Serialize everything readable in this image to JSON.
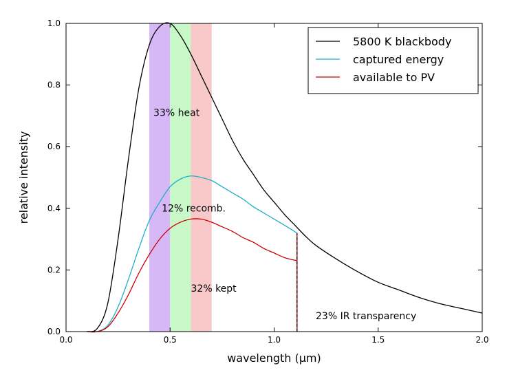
{
  "chart_data": {
    "type": "line",
    "title": "",
    "xlabel": "wavelength (μm)",
    "ylabel": "relative intensity",
    "xlim": [
      0.0,
      2.0
    ],
    "ylim": [
      0.0,
      1.0
    ],
    "xticks": [
      0.0,
      0.5,
      1.0,
      1.5,
      2.0
    ],
    "xtick_labels": [
      "0.0",
      "0.5",
      "1.0",
      "1.5",
      "2.0"
    ],
    "yticks": [
      0.0,
      0.2,
      0.4,
      0.6,
      0.8,
      1.0
    ],
    "ytick_labels": [
      "0.0",
      "0.2",
      "0.4",
      "0.6",
      "0.8",
      "1.0"
    ],
    "grid": false,
    "legend_position": "top-right",
    "bands": [
      {
        "x0": 0.4,
        "x1": 0.5,
        "color": "#d6b8f7"
      },
      {
        "x0": 0.5,
        "x1": 0.6,
        "color": "#c8f7c8"
      },
      {
        "x0": 0.6,
        "x1": 0.7,
        "color": "#f9c8c8"
      }
    ],
    "bandgap_cutoff": 1.11,
    "series": [
      {
        "name": "5800 K blackbody",
        "color": "#000000",
        "x": [
          0.1,
          0.15,
          0.2,
          0.25,
          0.3,
          0.35,
          0.4,
          0.45,
          0.5,
          0.55,
          0.6,
          0.65,
          0.7,
          0.75,
          0.8,
          0.85,
          0.9,
          0.95,
          1.0,
          1.05,
          1.1,
          1.15,
          1.2,
          1.3,
          1.4,
          1.5,
          1.6,
          1.7,
          1.8,
          1.9,
          2.0
        ],
        "y": [
          0.0,
          0.01,
          0.09,
          0.3,
          0.56,
          0.79,
          0.93,
          0.99,
          1.0,
          0.96,
          0.9,
          0.83,
          0.76,
          0.69,
          0.62,
          0.56,
          0.51,
          0.46,
          0.42,
          0.38,
          0.345,
          0.31,
          0.28,
          0.235,
          0.195,
          0.16,
          0.135,
          0.11,
          0.09,
          0.075,
          0.06
        ]
      },
      {
        "name": "captured energy",
        "color": "#1ab0c8",
        "x": [
          0.1,
          0.15,
          0.2,
          0.25,
          0.3,
          0.35,
          0.4,
          0.45,
          0.5,
          0.55,
          0.6,
          0.65,
          0.7,
          0.75,
          0.8,
          0.85,
          0.9,
          0.95,
          1.0,
          1.05,
          1.11
        ],
        "y": [
          0.0,
          0.0,
          0.02,
          0.08,
          0.17,
          0.27,
          0.36,
          0.42,
          0.47,
          0.495,
          0.505,
          0.5,
          0.49,
          0.47,
          0.45,
          0.43,
          0.405,
          0.385,
          0.365,
          0.345,
          0.32
        ]
      },
      {
        "name": "available to PV",
        "color": "#cc0000",
        "x": [
          0.1,
          0.15,
          0.2,
          0.25,
          0.3,
          0.35,
          0.4,
          0.45,
          0.5,
          0.55,
          0.6,
          0.65,
          0.7,
          0.75,
          0.8,
          0.85,
          0.9,
          0.95,
          1.0,
          1.05,
          1.11
        ],
        "y": [
          0.0,
          0.0,
          0.015,
          0.06,
          0.12,
          0.19,
          0.25,
          0.3,
          0.335,
          0.355,
          0.365,
          0.365,
          0.355,
          0.34,
          0.325,
          0.305,
          0.29,
          0.27,
          0.255,
          0.24,
          0.23
        ]
      }
    ],
    "annotations": [
      {
        "text": "33% heat",
        "x": 0.42,
        "y": 0.7
      },
      {
        "text": "12% recomb.",
        "x": 0.46,
        "y": 0.39
      },
      {
        "text": "32% kept",
        "x": 0.6,
        "y": 0.13
      },
      {
        "text": "23% IR transparency",
        "x": 1.2,
        "y": 0.04
      }
    ]
  }
}
